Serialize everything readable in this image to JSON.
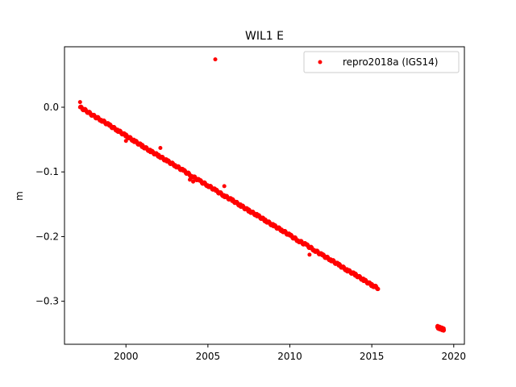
{
  "chart_data": {
    "type": "scatter",
    "title": "WIL1 E",
    "xlabel": "",
    "ylabel": "m",
    "xlim": [
      1996.25,
      2020.65
    ],
    "ylim": [
      -0.3665,
      0.0935
    ],
    "xticks": [
      2000,
      2005,
      2010,
      2015,
      2020
    ],
    "xtick_labels": [
      "2000",
      "2005",
      "2010",
      "2015",
      "2020"
    ],
    "yticks": [
      0.0,
      -0.1,
      -0.2,
      -0.3
    ],
    "ytick_labels": [
      "0.0",
      "−0.1",
      "−0.2",
      "−0.3"
    ],
    "grid": false,
    "legend_position": "upper right",
    "marker_color": "#ff0000",
    "series": [
      {
        "name": "repro2018a (IGS14)",
        "color": "#ff0000",
        "x": [
          1997.2,
          1997.6,
          1998.0,
          1998.5,
          1999.0,
          1999.5,
          2000.0,
          2000.5,
          2001.0,
          2001.5,
          2002.0,
          2002.5,
          2003.0,
          2003.5,
          2004.0,
          2004.5,
          2005.0,
          2005.5,
          2006.0,
          2006.5,
          2007.0,
          2007.5,
          2008.0,
          2008.5,
          2009.0,
          2009.5,
          2010.0,
          2010.5,
          2011.0,
          2011.5,
          2012.0,
          2012.5,
          2013.0,
          2013.5,
          2014.0,
          2014.5,
          2015.0,
          2015.4,
          2019.0,
          2019.2,
          2019.4
        ],
        "y": [
          0.0,
          -0.006,
          -0.013,
          -0.02,
          -0.028,
          -0.036,
          -0.044,
          -0.052,
          -0.06,
          -0.068,
          -0.075,
          -0.083,
          -0.09,
          -0.098,
          -0.106,
          -0.114,
          -0.121,
          -0.129,
          -0.137,
          -0.144,
          -0.152,
          -0.16,
          -0.167,
          -0.175,
          -0.183,
          -0.19,
          -0.198,
          -0.206,
          -0.213,
          -0.221,
          -0.229,
          -0.236,
          -0.244,
          -0.252,
          -0.259,
          -0.267,
          -0.275,
          -0.28,
          -0.34,
          -0.342,
          -0.344
        ]
      }
    ],
    "outliers": {
      "x": [
        1997.2,
        2005.45,
        2006.0,
        2000.0,
        2002.1,
        2003.9,
        2011.2,
        2004.1
      ],
      "y": [
        0.008,
        0.074,
        -0.122,
        -0.052,
        -0.063,
        -0.112,
        -0.228,
        -0.115
      ]
    }
  }
}
